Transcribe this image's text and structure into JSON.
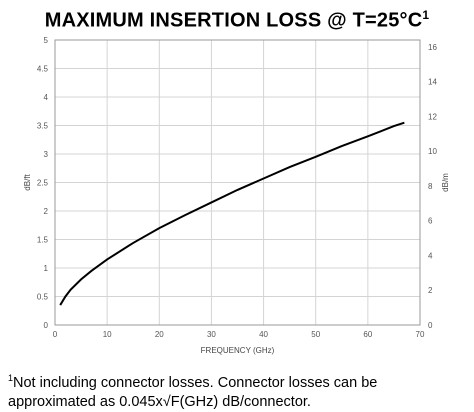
{
  "title": {
    "text": "MAXIMUM INSERTION LOSS @ T=25°C",
    "footnote_mark": "1"
  },
  "footnote": {
    "mark": "1",
    "line1": "Not including connector losses.  Connector losses can be",
    "line2": "approximated as 0.045x√F(GHz) dB/connector."
  },
  "chart_data": {
    "type": "line",
    "title": "MAXIMUM INSERTION LOSS @ T=25°C",
    "xlabel": "FREQUENCY (GHz)",
    "ylabel": "dB/ft",
    "y2label": "dB/m",
    "xlim": [
      0,
      70
    ],
    "ylim": [
      0,
      5
    ],
    "y2lim": [
      0,
      16.4
    ],
    "x_ticks": [
      0,
      10,
      20,
      30,
      40,
      50,
      60,
      70
    ],
    "y_ticks": [
      0,
      0.5,
      1,
      1.5,
      2,
      2.5,
      3,
      3.5,
      4,
      4.5,
      5
    ],
    "y2_ticks": [
      0,
      2,
      4,
      6,
      8,
      10,
      12,
      14,
      16
    ],
    "grid": true,
    "legend": "none",
    "line_color": "#000000",
    "series": [
      {
        "x": [
          1,
          2,
          3,
          5,
          7,
          10,
          15,
          20,
          25,
          30,
          35,
          40,
          45,
          50,
          55,
          60,
          65,
          67
        ],
        "values": [
          0.35,
          0.5,
          0.62,
          0.8,
          0.95,
          1.15,
          1.44,
          1.7,
          1.93,
          2.15,
          2.37,
          2.57,
          2.77,
          2.95,
          3.14,
          3.31,
          3.49,
          3.55
        ]
      }
    ]
  }
}
